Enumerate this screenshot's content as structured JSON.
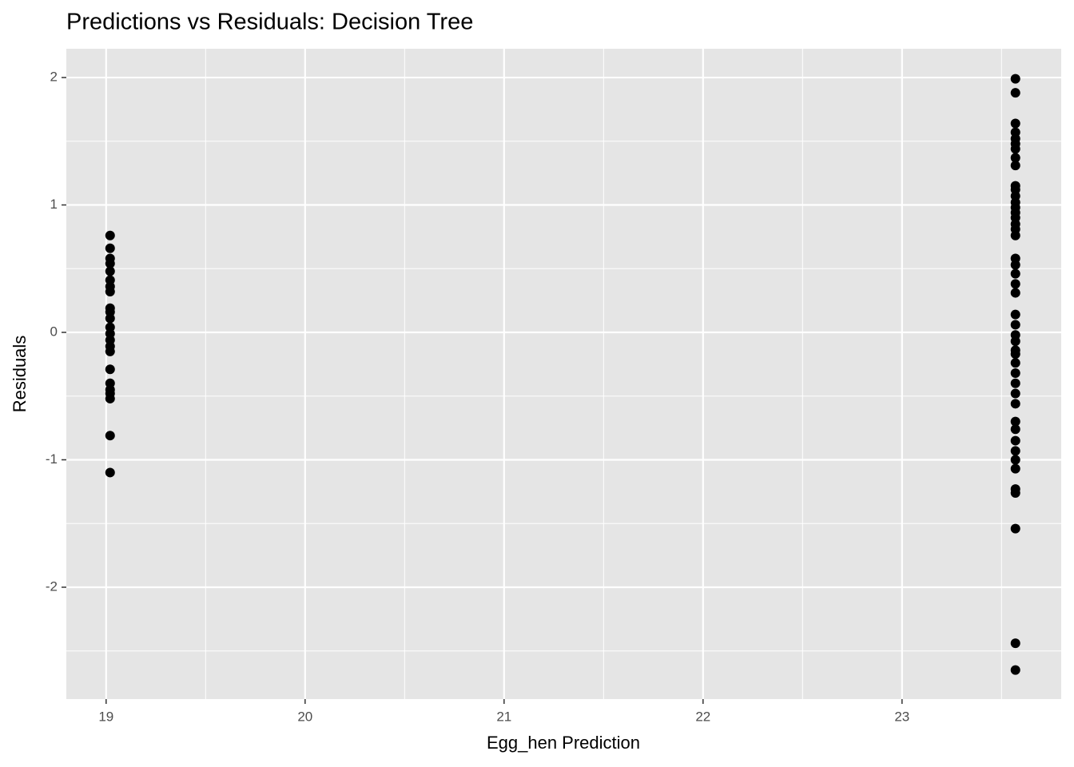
{
  "chart_data": {
    "type": "scatter",
    "title": "Predictions vs Residuals: Decision Tree",
    "x_label": "Egg_hen Prediction",
    "y_label": "Residuals",
    "x": [
      19.02,
      19.02,
      19.02,
      19.02,
      19.02,
      19.02,
      19.02,
      19.02,
      19.02,
      19.02,
      19.02,
      19.02,
      19.02,
      19.02,
      19.02,
      19.02,
      19.02,
      19.02,
      19.02,
      19.02,
      19.02,
      19.02,
      19.02,
      23.57,
      23.57,
      23.57,
      23.57,
      23.57,
      23.57,
      23.57,
      23.57,
      23.57,
      23.57,
      23.57,
      23.57,
      23.57,
      23.57,
      23.57,
      23.57,
      23.57,
      23.57,
      23.57,
      23.57,
      23.57,
      23.57,
      23.57,
      23.57,
      23.57,
      23.57,
      23.57,
      23.57,
      23.57,
      23.57,
      23.57,
      23.57,
      23.57,
      23.57,
      23.57,
      23.57,
      23.57,
      23.57,
      23.57,
      23.57,
      23.57,
      23.57,
      23.57,
      23.57,
      23.57,
      23.57
    ],
    "values": [
      0.76,
      0.66,
      0.58,
      0.54,
      0.48,
      0.41,
      0.36,
      0.32,
      0.19,
      0.16,
      0.11,
      0.04,
      -0.01,
      -0.06,
      -0.11,
      -0.15,
      -0.29,
      -0.4,
      -0.45,
      -0.48,
      -0.52,
      -0.81,
      -1.1,
      1.99,
      1.88,
      1.64,
      1.57,
      1.52,
      1.48,
      1.44,
      1.37,
      1.31,
      1.15,
      1.12,
      1.07,
      1.02,
      0.98,
      0.94,
      0.9,
      0.85,
      0.81,
      0.76,
      0.58,
      0.53,
      0.46,
      0.38,
      0.31,
      0.14,
      0.06,
      -0.02,
      -0.07,
      -0.14,
      -0.17,
      -0.24,
      -0.32,
      -0.4,
      -0.48,
      -0.56,
      -0.7,
      -0.76,
      -0.85,
      -0.93,
      -1.0,
      -1.07,
      -1.23,
      -1.26,
      -1.54,
      -2.44,
      -2.65
    ],
    "color": "#000000",
    "xlim": [
      18.8,
      23.8
    ],
    "xticks": [
      19,
      20,
      21,
      22,
      23
    ],
    "ylim": [
      -2.878,
      2.226
    ],
    "yticks": [
      -2,
      -1,
      0,
      1,
      2
    ],
    "grid": true
  }
}
